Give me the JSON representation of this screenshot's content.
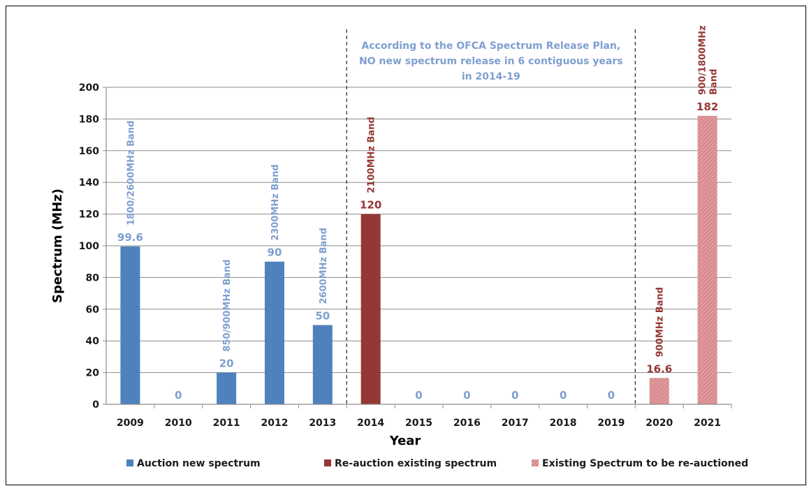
{
  "chart_data": {
    "type": "bar",
    "categories": [
      "2009",
      "2010",
      "2011",
      "2012",
      "2013",
      "2014",
      "2015",
      "2016",
      "2017",
      "2018",
      "2019",
      "2020",
      "2021"
    ],
    "values": [
      99.6,
      0,
      20,
      90,
      50,
      120,
      0,
      0,
      0,
      0,
      0,
      16.6,
      182
    ],
    "value_labels": [
      "99.6",
      "0",
      "20",
      "90",
      "50",
      "120",
      "0",
      "0",
      "0",
      "0",
      "0",
      "16.6",
      "182"
    ],
    "series_index": [
      0,
      0,
      0,
      0,
      0,
      1,
      0,
      0,
      0,
      0,
      0,
      2,
      2
    ],
    "band_labels": [
      {
        "category": "2009",
        "lines": [
          "1800/2600MHz Band"
        ]
      },
      {
        "category": "2011",
        "lines": [
          "850/900MHz Band"
        ]
      },
      {
        "category": "2012",
        "lines": [
          "2300MHz Band"
        ]
      },
      {
        "category": "2013",
        "lines": [
          "2600MHz Band"
        ]
      },
      {
        "category": "2014",
        "lines": [
          "2100MHz Band"
        ]
      },
      {
        "category": "2020",
        "lines": [
          "900MHz Band"
        ]
      },
      {
        "category": "2021",
        "lines": [
          "900/1800MHz",
          "Band"
        ]
      }
    ],
    "series": [
      {
        "name": "Auction new spectrum",
        "color": "#4f81bd",
        "label_color": "#7f9fcf"
      },
      {
        "name": "Re-auction existing spectrum",
        "color": "#953735",
        "label_color": "#953735"
      },
      {
        "name": "Existing Spectrum to be re-auctioned",
        "color": "#d88a8c",
        "label_color": "#953735",
        "pattern": "hatched"
      }
    ],
    "xlabel": "Year",
    "ylabel": "Spectrum (MHz)",
    "ylim": [
      0,
      200
    ],
    "yticks": [
      0,
      20,
      40,
      60,
      80,
      100,
      120,
      140,
      160,
      180,
      200
    ],
    "grid": true,
    "legend_position": "bottom",
    "annotation": {
      "lines": [
        "According to the OFCA Spectrum Release Plan,",
        "NO new spectrum release in 6 contiguous years",
        "in 2014-19"
      ],
      "dashed_dividers_between": [
        [
          "2013",
          "2014"
        ],
        [
          "2019",
          "2020"
        ]
      ]
    }
  }
}
